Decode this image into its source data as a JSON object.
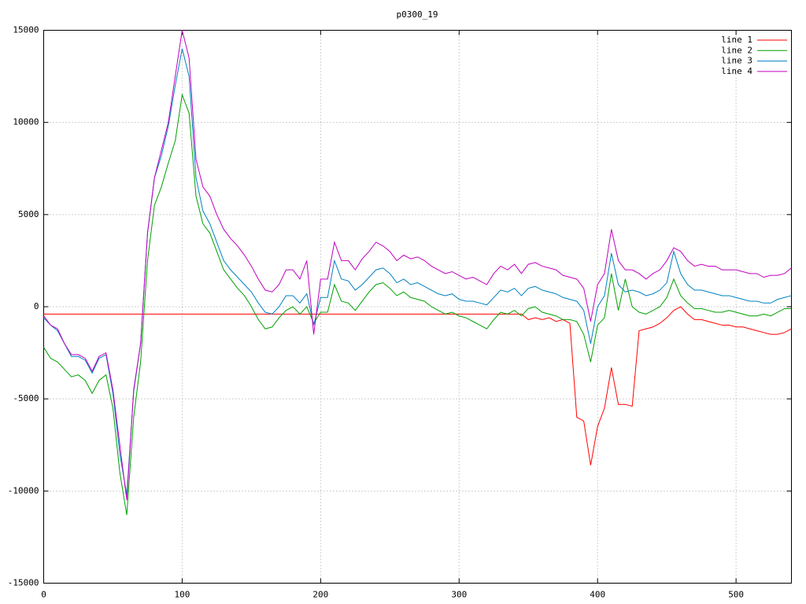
{
  "chart_data": {
    "type": "line",
    "title": "p0300_19",
    "xlim": [
      0,
      540
    ],
    "ylim": [
      -15000,
      15000
    ],
    "xticks": [
      0,
      100,
      200,
      300,
      400,
      500
    ],
    "yticks": [
      -15000,
      -10000,
      -5000,
      0,
      5000,
      10000,
      15000
    ],
    "grid": true,
    "legend": "top-right",
    "x": [
      0,
      5,
      10,
      15,
      20,
      25,
      30,
      35,
      40,
      45,
      50,
      55,
      60,
      65,
      70,
      75,
      80,
      85,
      90,
      95,
      100,
      105,
      110,
      115,
      120,
      125,
      130,
      135,
      140,
      145,
      150,
      155,
      160,
      165,
      170,
      175,
      180,
      185,
      190,
      195,
      200,
      205,
      210,
      215,
      220,
      225,
      230,
      235,
      240,
      245,
      250,
      255,
      260,
      265,
      270,
      275,
      280,
      285,
      290,
      295,
      300,
      305,
      310,
      315,
      320,
      325,
      330,
      335,
      340,
      345,
      350,
      355,
      360,
      365,
      370,
      375,
      380,
      385,
      390,
      395,
      400,
      405,
      410,
      415,
      420,
      425,
      430,
      435,
      440,
      445,
      450,
      455,
      460,
      465,
      470,
      475,
      480,
      485,
      490,
      495,
      500,
      505,
      510,
      515,
      520,
      525,
      530,
      535,
      540
    ],
    "series": [
      {
        "name": "line 1",
        "color": "#ff0000",
        "values": [
          -400,
          -400,
          -400,
          -400,
          -400,
          -400,
          -400,
          -400,
          -400,
          -400,
          -400,
          -400,
          -400,
          -400,
          -400,
          -400,
          -400,
          -400,
          -400,
          -400,
          -400,
          -400,
          -400,
          -400,
          -400,
          -400,
          -400,
          -400,
          -400,
          -400,
          -400,
          -400,
          -400,
          -400,
          -400,
          -400,
          -400,
          -400,
          -400,
          -400,
          -400,
          -400,
          -400,
          -400,
          -400,
          -400,
          -400,
          -400,
          -400,
          -400,
          -400,
          -400,
          -400,
          -400,
          -400,
          -400,
          -400,
          -400,
          -400,
          -400,
          -400,
          -400,
          -400,
          -400,
          -400,
          -400,
          -400,
          -400,
          -400,
          -400,
          -700,
          -600,
          -700,
          -600,
          -800,
          -700,
          -900,
          -6000,
          -6200,
          -8600,
          -6500,
          -5500,
          -3300,
          -5300,
          -5300,
          -5400,
          -1300,
          -1200,
          -1100,
          -900,
          -600,
          -200,
          0,
          -400,
          -700,
          -700,
          -800,
          -900,
          -1000,
          -1000,
          -1100,
          -1100,
          -1200,
          -1300,
          -1400,
          -1500,
          -1500,
          -1400,
          -1200
        ]
      },
      {
        "name": "line 2",
        "color": "#00a000",
        "values": [
          -2200,
          -2800,
          -3000,
          -3400,
          -3800,
          -3700,
          -4000,
          -4700,
          -4000,
          -3700,
          -5500,
          -9000,
          -11300,
          -6000,
          -3000,
          2500,
          5500,
          6500,
          7800,
          9000,
          11500,
          10500,
          6000,
          4500,
          4000,
          3000,
          2000,
          1500,
          1000,
          600,
          0,
          -700,
          -1200,
          -1100,
          -600,
          -200,
          0,
          -400,
          0,
          -900,
          -300,
          -300,
          1200,
          300,
          200,
          -200,
          300,
          800,
          1200,
          1300,
          1000,
          600,
          800,
          500,
          400,
          300,
          0,
          -200,
          -400,
          -300,
          -500,
          -600,
          -800,
          -1000,
          -1200,
          -700,
          -300,
          -400,
          -200,
          -500,
          -100,
          0,
          -300,
          -400,
          -500,
          -700,
          -700,
          -800,
          -1500,
          -3000,
          -1000,
          -600,
          1800,
          -200,
          1500,
          0,
          -300,
          -400,
          -200,
          0,
          500,
          1500,
          600,
          200,
          -100,
          -100,
          -200,
          -300,
          -300,
          -200,
          -300,
          -400,
          -500,
          -500,
          -400,
          -500,
          -300,
          -100,
          -100
        ]
      },
      {
        "name": "line 3",
        "color": "#0080c0",
        "values": [
          -600,
          -1000,
          -1300,
          -2000,
          -2700,
          -2700,
          -2900,
          -3600,
          -2800,
          -2600,
          -4700,
          -8000,
          -10200,
          -4600,
          -2000,
          4000,
          7000,
          8200,
          9800,
          12000,
          14000,
          12500,
          7000,
          5200,
          4500,
          3500,
          2500,
          2000,
          1600,
          1200,
          800,
          200,
          -300,
          -400,
          0,
          600,
          600,
          200,
          700,
          -1000,
          500,
          500,
          2500,
          1500,
          1400,
          900,
          1200,
          1600,
          2000,
          2100,
          1800,
          1300,
          1500,
          1200,
          1300,
          1100,
          900,
          700,
          600,
          700,
          400,
          300,
          300,
          200,
          100,
          500,
          900,
          800,
          1000,
          600,
          1000,
          1100,
          900,
          800,
          700,
          500,
          400,
          300,
          -200,
          -2000,
          0,
          600,
          2900,
          1200,
          800,
          900,
          800,
          600,
          700,
          900,
          1300,
          3000,
          1800,
          1200,
          900,
          900,
          800,
          700,
          600,
          600,
          500,
          400,
          300,
          300,
          200,
          200,
          400,
          500,
          600
        ]
      },
      {
        "name": "line 4",
        "color": "#c000c0",
        "values": [
          -500,
          -1000,
          -1200,
          -2000,
          -2600,
          -2600,
          -2800,
          -3500,
          -2700,
          -2500,
          -4500,
          -7500,
          -10500,
          -4500,
          -2000,
          4000,
          7000,
          8500,
          10000,
          12500,
          15000,
          13500,
          8000,
          6500,
          6000,
          5000,
          4200,
          3700,
          3300,
          2800,
          2200,
          1500,
          900,
          800,
          1200,
          2000,
          2000,
          1500,
          2500,
          -1500,
          1500,
          1500,
          3500,
          2500,
          2500,
          2000,
          2600,
          3000,
          3500,
          3300,
          3000,
          2500,
          2800,
          2600,
          2700,
          2500,
          2200,
          2000,
          1800,
          1900,
          1700,
          1500,
          1600,
          1400,
          1200,
          1800,
          2200,
          2000,
          2300,
          1800,
          2300,
          2400,
          2200,
          2100,
          2000,
          1700,
          1600,
          1500,
          1000,
          -800,
          1200,
          1800,
          4200,
          2500,
          2000,
          2000,
          1800,
          1500,
          1800,
          2000,
          2500,
          3200,
          3000,
          2500,
          2200,
          2300,
          2200,
          2200,
          2000,
          2000,
          2000,
          1900,
          1800,
          1800,
          1600,
          1700,
          1700,
          1800,
          2100
        ]
      }
    ]
  }
}
